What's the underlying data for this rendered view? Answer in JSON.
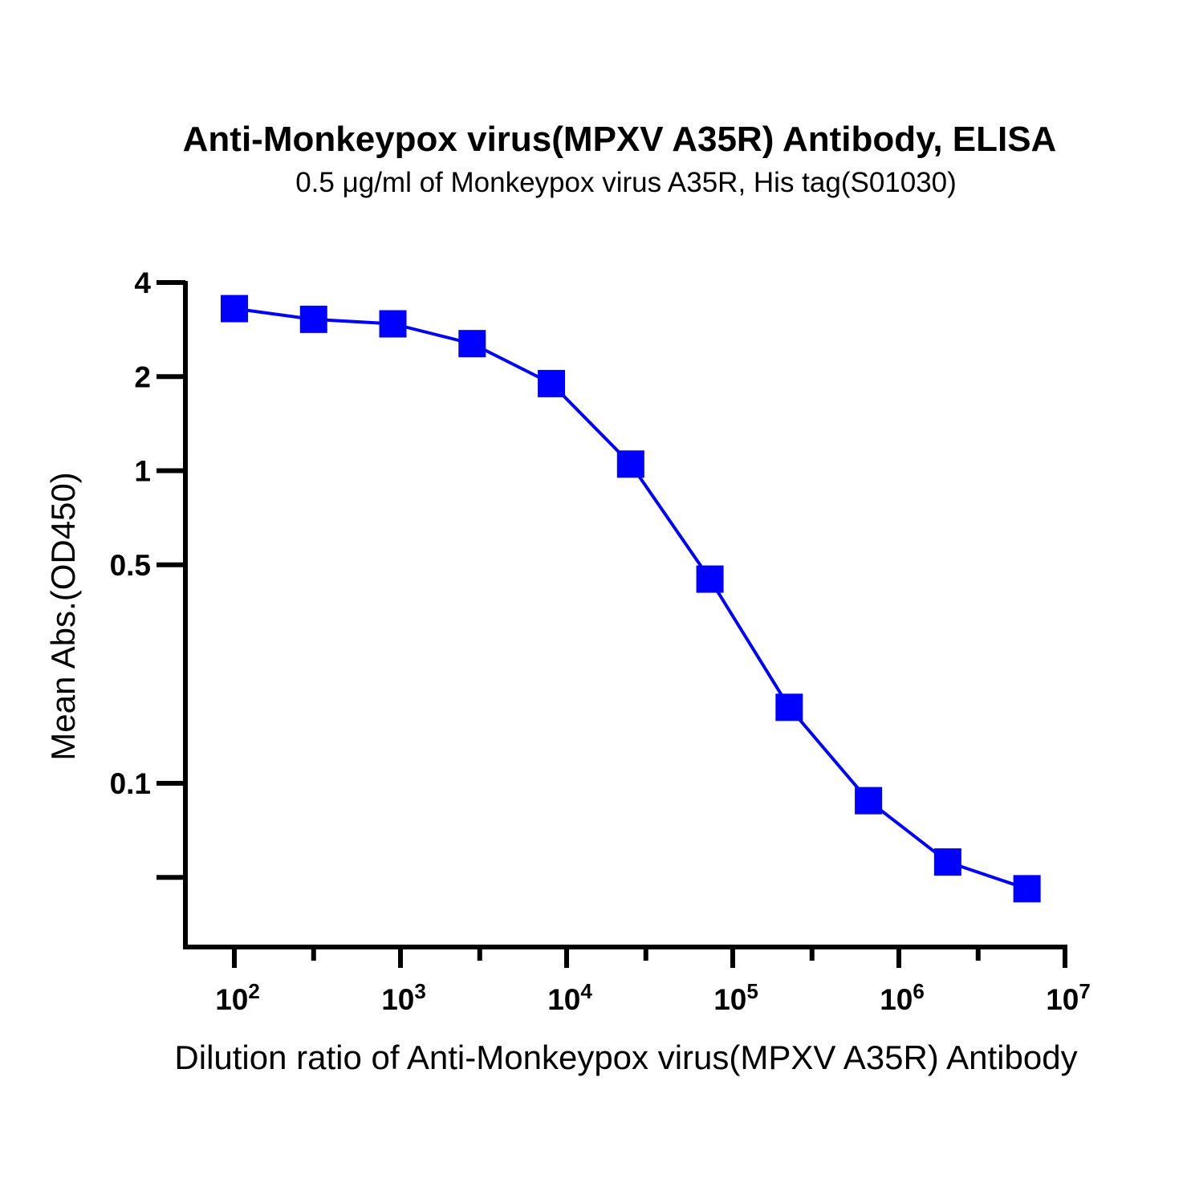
{
  "chart_data": {
    "type": "line",
    "title": "Anti-Monkeypox virus(MPXV A35R) Antibody, ELISA",
    "subtitle": "0.5 μg/ml of Monkeypox virus A35R, His tag(S01030)",
    "xlabel": "Dilution ratio of Anti-Monkeypox virus(MPXV A35R) Antibody",
    "ylabel": "Mean Abs.(OD450)",
    "x_scale": "log10",
    "y_scale": "log10",
    "xlim": [
      60,
      10000000
    ],
    "ylim": [
      0.025,
      4
    ],
    "x_ticks": [
      {
        "value": 100,
        "base": "10",
        "exp": "2"
      },
      {
        "value": 1000,
        "base": "10",
        "exp": "3"
      },
      {
        "value": 10000,
        "base": "10",
        "exp": "4"
      },
      {
        "value": 100000,
        "base": "10",
        "exp": "5"
      },
      {
        "value": 1000000,
        "base": "10",
        "exp": "6"
      },
      {
        "value": 10000000,
        "base": "10",
        "exp": "7"
      }
    ],
    "x_minor_ticks": [
      300,
      3000,
      30000,
      300000,
      3000000
    ],
    "y_ticks": [
      {
        "value": 4,
        "label": "4"
      },
      {
        "value": 2,
        "label": "2"
      },
      {
        "value": 1,
        "label": "1"
      },
      {
        "value": 0.5,
        "label": "0.5"
      },
      {
        "value": 0.1,
        "label": "0.1"
      },
      {
        "value": 0.05,
        "label": ""
      }
    ],
    "grid": false,
    "legend": "none",
    "color": "#0000ff",
    "series": [
      {
        "x": [
          100,
          300,
          900,
          2700,
          8100,
          24300,
          72900,
          218700,
          656100,
          1968300,
          5904900
        ],
        "y": [
          3.3,
          3.05,
          2.95,
          2.55,
          1.9,
          1.05,
          0.45,
          0.175,
          0.088,
          0.056,
          0.046
        ]
      }
    ]
  }
}
